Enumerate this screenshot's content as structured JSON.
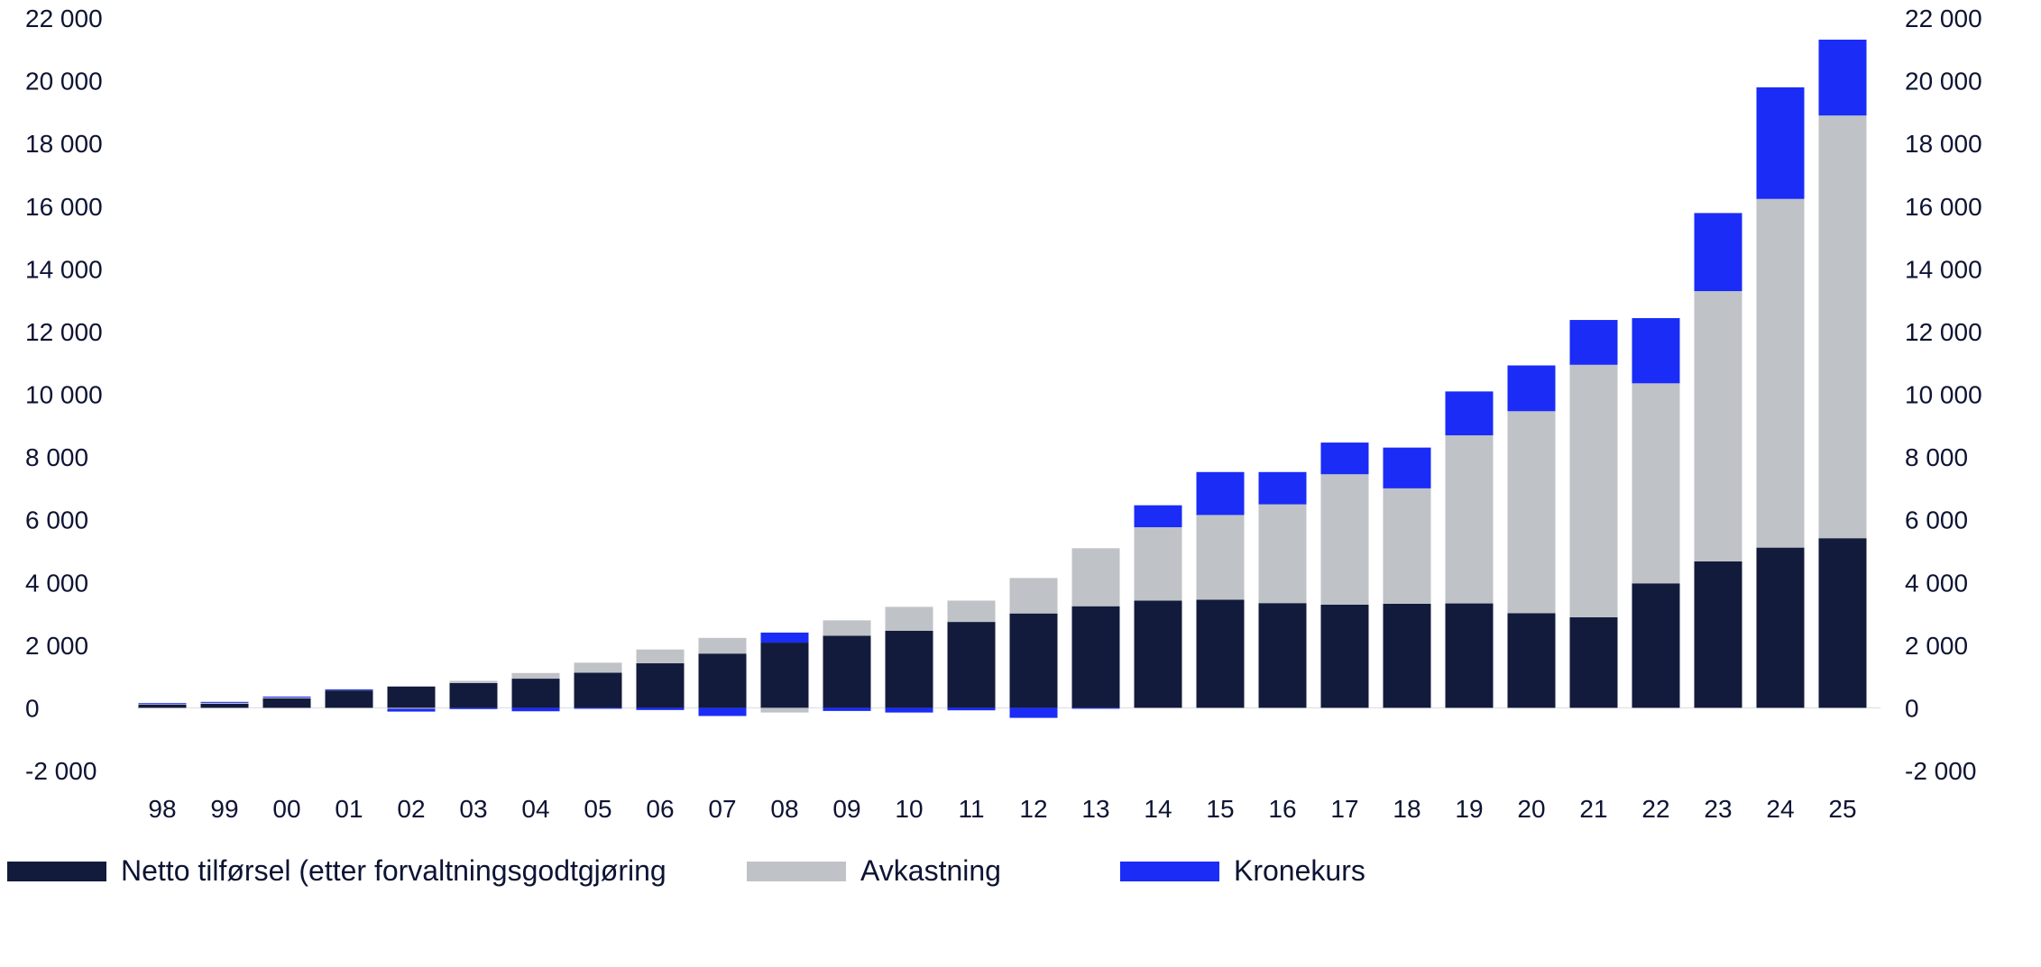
{
  "chart_data": {
    "type": "bar",
    "stacked": true,
    "categories": [
      "98",
      "99",
      "00",
      "01",
      "02",
      "03",
      "04",
      "05",
      "06",
      "07",
      "08",
      "09",
      "10",
      "11",
      "12",
      "13",
      "14",
      "15",
      "16",
      "17",
      "18",
      "19",
      "20",
      "21",
      "22",
      "23",
      "24",
      "25"
    ],
    "series": [
      {
        "name": "Netto tilførsel (etter forvaltningsgodtgjøring",
        "color": "#121b3b",
        "values": [
          100,
          130,
          300,
          560,
          680,
          790,
          930,
          1120,
          1420,
          1730,
          2080,
          2300,
          2460,
          2740,
          3010,
          3240,
          3420,
          3450,
          3340,
          3290,
          3320,
          3330,
          3020,
          2890,
          3970,
          4670,
          5110,
          5410
        ]
      },
      {
        "name": "Avkastning",
        "color": "#bfc2c7",
        "values": [
          30,
          50,
          40,
          20,
          -30,
          70,
          180,
          320,
          440,
          500,
          -150,
          490,
          760,
          680,
          1130,
          1850,
          2340,
          2700,
          3150,
          4160,
          3680,
          5360,
          6440,
          8050,
          6380,
          8620,
          11120,
          13480
        ]
      },
      {
        "name": "Kronekurs",
        "color": "#1a2cf5",
        "values": [
          20,
          10,
          20,
          10,
          -90,
          -40,
          -110,
          -30,
          -70,
          -260,
          320,
          -100,
          -150,
          -80,
          -320,
          -20,
          700,
          1370,
          1030,
          1010,
          1300,
          1400,
          1460,
          1430,
          2080,
          2490,
          3560,
          2420
        ]
      }
    ],
    "ylim": [
      -2000,
      22000
    ],
    "yticks": [
      "22 000",
      "20 000",
      "18 000",
      "16 000",
      "14 000",
      "12 000",
      "10 000",
      "8 000",
      "6 000",
      "4 000",
      "2 000",
      "0",
      "-2 000"
    ],
    "ytick_values": [
      22000,
      20000,
      18000,
      16000,
      14000,
      12000,
      10000,
      8000,
      6000,
      4000,
      2000,
      0,
      -2000
    ],
    "legend_position": "bottom-left",
    "grid": false
  }
}
